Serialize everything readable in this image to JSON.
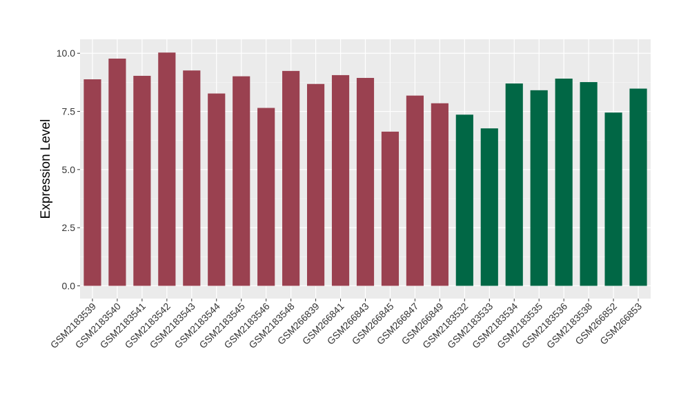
{
  "chart_data": {
    "type": "bar",
    "title": "",
    "xlabel": "",
    "ylabel": "Expression Level",
    "ylim": [
      -0.55,
      10.6
    ],
    "yticks": [
      0.0,
      2.5,
      5.0,
      7.5,
      10.0
    ],
    "ytick_labels": [
      "0.0",
      "2.5",
      "5.0",
      "7.5",
      "10.0"
    ],
    "grid": true,
    "legend": "none",
    "categories": [
      "GSM2183539",
      "GSM2183540",
      "GSM2183541",
      "GSM2183542",
      "GSM2183543",
      "GSM2183544",
      "GSM2183545",
      "GSM2183546",
      "GSM2183548",
      "GSM266839",
      "GSM266841",
      "GSM266843",
      "GSM266845",
      "GSM266847",
      "GSM266849",
      "GSM2183532",
      "GSM2183533",
      "GSM2183534",
      "GSM2183535",
      "GSM2183536",
      "GSM2183538",
      "GSM266852",
      "GSM266853"
    ],
    "values": [
      8.88,
      9.77,
      9.03,
      10.03,
      9.26,
      8.27,
      9.01,
      7.65,
      9.24,
      8.68,
      9.06,
      8.94,
      6.63,
      8.18,
      7.85,
      7.36,
      6.77,
      8.7,
      8.41,
      8.91,
      8.76,
      7.45,
      8.48
    ],
    "colors": [
      "#9a4150",
      "#9a4150",
      "#9a4150",
      "#9a4150",
      "#9a4150",
      "#9a4150",
      "#9a4150",
      "#9a4150",
      "#9a4150",
      "#9a4150",
      "#9a4150",
      "#9a4150",
      "#9a4150",
      "#9a4150",
      "#9a4150",
      "#016745",
      "#016745",
      "#016745",
      "#016745",
      "#016745",
      "#016745",
      "#016745",
      "#016745"
    ]
  },
  "style": {
    "panel_bg": "#ebebeb",
    "grid_major": "#ffffff",
    "grid_minor": "#f5f5f5",
    "group_a_color": "#9a4150",
    "group_b_color": "#016745"
  }
}
